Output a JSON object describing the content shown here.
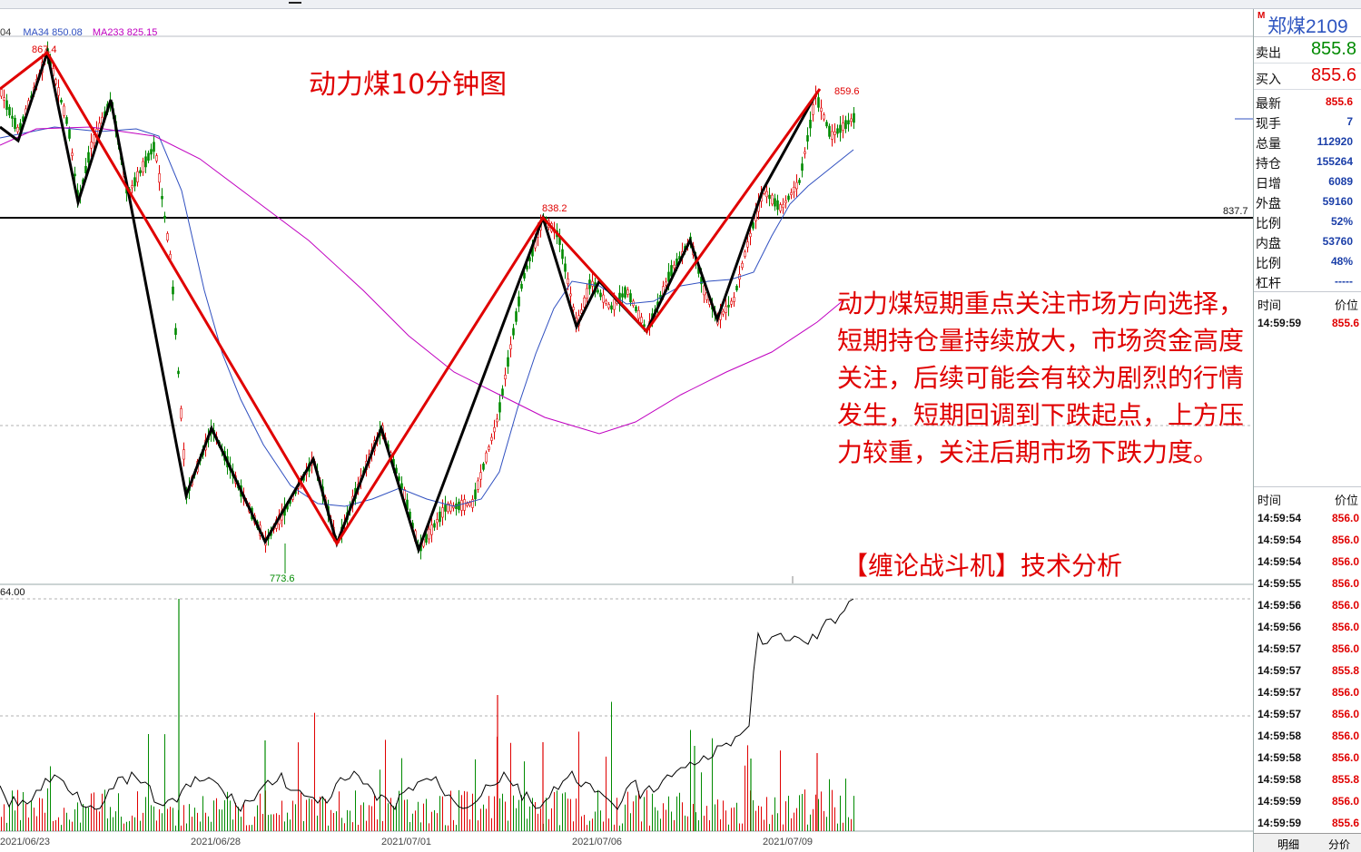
{
  "window": {
    "ma_legend": [
      {
        "text": "04",
        "color": "#333333"
      },
      {
        "text": "MA34 850.08",
        "color": "#3050c0"
      },
      {
        "text": "MA233 825.15",
        "color": "#c000c0"
      }
    ]
  },
  "chart_labels": {
    "peak_left": "867.4",
    "peak_right": "859.6",
    "mid_high": "838.2",
    "low": "773.6",
    "hline": "837.7",
    "sub_scale": "64.00"
  },
  "dates": [
    "2021/06/23",
    "2021/06/28",
    "2021/07/01",
    "2021/07/06",
    "2021/07/09"
  ],
  "annotations": {
    "title": "动力煤10分钟图",
    "analysis": "动力煤短期重点关注市场方向选择，短期持仓量持续放大，市场资金高度关注，后续可能会有较为剧烈的行情发生，短期回调到下跌起点，上方压力较重，关注后期市场下跌力度。",
    "credit": "【缠论战斗机】技术分析"
  },
  "quote": {
    "symbol_marker": "M",
    "symbol": "郑煤2109",
    "sell_label": "卖出",
    "sell_value": "855.8",
    "buy_label": "买入",
    "buy_value": "855.6",
    "rows": [
      {
        "label": "最新",
        "value": "855.6",
        "color": "#e00000"
      },
      {
        "label": "现手",
        "value": "7",
        "color": "#1a3ea8"
      },
      {
        "label": "总量",
        "value": "112920",
        "color": "#1a3ea8"
      },
      {
        "label": "持仓",
        "value": "155264",
        "color": "#1a3ea8"
      },
      {
        "label": "日增",
        "value": "6089",
        "color": "#1a3ea8"
      },
      {
        "label": "外盘",
        "value": "59160",
        "color": "#1a3ea8"
      },
      {
        "label": "比例",
        "value": "52%",
        "color": "#1a3ea8"
      },
      {
        "label": "内盘",
        "value": "53760",
        "color": "#1a3ea8"
      },
      {
        "label": "比例",
        "value": "48%",
        "color": "#1a3ea8"
      },
      {
        "label": "杠杆",
        "value": "-----",
        "color": "#1a3ea8"
      }
    ],
    "time_header": "时间",
    "price_header": "价位",
    "latest_time": "14:59:59",
    "latest_price": "855.6"
  },
  "ticks": {
    "header_time": "时间",
    "header_price": "价位",
    "rows": [
      {
        "time": "14:59:54",
        "price": "856.0"
      },
      {
        "time": "14:59:54",
        "price": "856.0"
      },
      {
        "time": "14:59:54",
        "price": "856.0"
      },
      {
        "time": "14:59:55",
        "price": "856.0"
      },
      {
        "time": "14:59:56",
        "price": "856.0"
      },
      {
        "time": "14:59:56",
        "price": "856.0"
      },
      {
        "time": "14:59:57",
        "price": "856.0"
      },
      {
        "time": "14:59:57",
        "price": "855.8"
      },
      {
        "time": "14:59:57",
        "price": "856.0"
      },
      {
        "time": "14:59:57",
        "price": "856.0"
      },
      {
        "time": "14:59:58",
        "price": "856.0"
      },
      {
        "time": "14:59:58",
        "price": "856.0"
      },
      {
        "time": "14:59:58",
        "price": "855.8"
      },
      {
        "time": "14:59:59",
        "price": "856.0"
      },
      {
        "time": "14:59:59",
        "price": "855.6"
      }
    ]
  },
  "tabs": {
    "detail": "明细",
    "split": "分价"
  },
  "colors": {
    "up": "#e00000",
    "down": "#008a00",
    "ma_fast": "#3050c0",
    "ma_slow": "#c000c0",
    "zigzag_black": "#000000",
    "zigzag_red": "#e00000",
    "accent_text": "#e00000"
  }
}
